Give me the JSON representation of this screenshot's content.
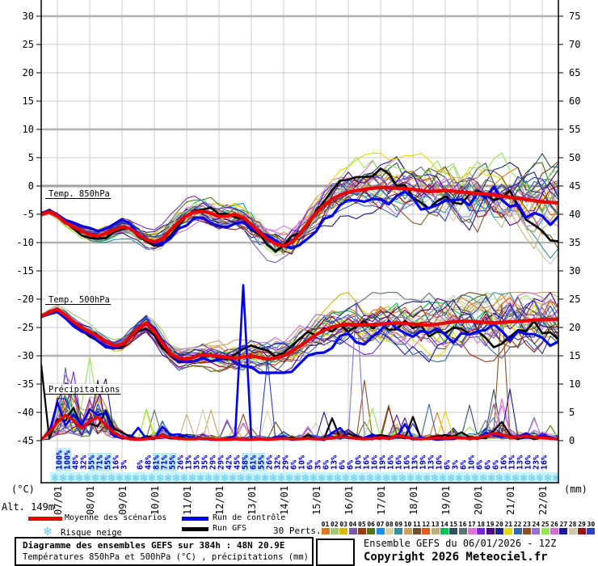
{
  "axes": {
    "left_unit": "(°C)",
    "right_unit": "(mm)",
    "alt_label": "Alt. 149m"
  },
  "legend": {
    "mean_label": "Moyenne des scénarios",
    "control_label": "Run de contrôle",
    "gfs_label": "Run GFS",
    "perts_label": "30 Perts.",
    "snow_label": "Risque neige",
    "snow_icon": "❄",
    "mean_color": "#ee0000",
    "control_color": "#0000ee",
    "gfs_color": "#000000"
  },
  "members": {
    "numbers": [
      "01",
      "02",
      "03",
      "04",
      "05",
      "06",
      "07",
      "08",
      "09",
      "10",
      "11",
      "12",
      "13",
      "14",
      "15",
      "16",
      "17",
      "18",
      "19",
      "20",
      "21",
      "22",
      "23",
      "24",
      "25",
      "26",
      "27",
      "28",
      "29",
      "30"
    ],
    "colors": [
      "#e07818",
      "#a0c878",
      "#d8b800",
      "#8058a8",
      "#a03818",
      "#507818",
      "#1890e8",
      "#d8d0a0",
      "#3090a0",
      "#d0a058",
      "#705028",
      "#e85818",
      "#c0b070",
      "#00c050",
      "#305060",
      "#607078",
      "#e070e0",
      "#7828d8",
      "#500088",
      "#202090",
      "#e8d800",
      "#3068a8",
      "#905020",
      "#9070d8",
      "#90e850",
      "#d070d0",
      "#1818a0",
      "#d0c8a0",
      "#a01010",
      "#2840c8"
    ]
  },
  "footer": {
    "title_line1": "Diagramme des ensembles GEFS sur 384h : 48N 20.9E",
    "title_line2": "Températures 850hPa et 500hPa (°C) , précipitations (mm)",
    "run_info": "Ensemble GEFS du 06/01/2026 - 12Z",
    "copyright": "Copyright 2026 Meteociel.fr"
  },
  "chart_data": {
    "type": "line",
    "title": "Diagramme des ensembles GEFS sur 384h : 48N 20.9E",
    "subtitle": "Températures 850hPa et 500hPa (°C) , précipitations (mm)",
    "x_ticks": [
      "07/01",
      "08/01",
      "09/01",
      "10/01",
      "11/01",
      "12/01",
      "13/01",
      "14/01",
      "15/01",
      "16/01",
      "17/01",
      "18/01",
      "19/01",
      "20/01",
      "21/01",
      "22/01"
    ],
    "y_left_ticks": [
      30,
      25,
      20,
      15,
      10,
      5,
      0,
      -5,
      -10,
      -15,
      -20,
      -25,
      -30,
      -35,
      -40,
      -45
    ],
    "y_right_ticks": [
      75,
      70,
      65,
      60,
      55,
      50,
      45,
      40,
      35,
      30,
      25,
      20,
      15,
      10,
      5,
      0
    ],
    "y_left_range": [
      -47.5,
      32.9
    ],
    "y_right_range": [
      -2.5,
      77.9
    ],
    "step_hours": 6,
    "ensemble_members": 30,
    "sections": [
      {
        "label": "Temp. 850hPa"
      },
      {
        "label": "Temp. 500hPa"
      },
      {
        "label": "Précipitations"
      }
    ],
    "mean": {
      "name": "Moyenne des scénarios",
      "temp850": [
        -5.0,
        -4.6,
        -5.3,
        -6.5,
        -7.2,
        -8.0,
        -8.6,
        -8.8,
        -8.4,
        -7.8,
        -7.2,
        -7.5,
        -8.6,
        -9.5,
        -9.9,
        -9.3,
        -7.8,
        -6.4,
        -5.2,
        -4.6,
        -4.5,
        -4.8,
        -5.4,
        -5.3,
        -5.0,
        -5.6,
        -6.8,
        -8.2,
        -9.4,
        -10.2,
        -10.6,
        -10.0,
        -8.5,
        -6.6,
        -4.8,
        -3.4,
        -2.3,
        -1.6,
        -1.1,
        -0.8,
        -0.6,
        -0.4,
        -0.3,
        -0.3,
        -0.4,
        -0.5,
        -0.6,
        -0.8,
        -1.0,
        -0.9,
        -0.8,
        -0.9,
        -1.1,
        -1.2,
        -1.3,
        -1.4,
        -1.6,
        -1.8,
        -2.0,
        -2.2,
        -2.4,
        -2.6,
        -2.8,
        -2.9,
        -3.0
      ],
      "temp500": [
        -23.0,
        -22.3,
        -21.8,
        -22.8,
        -24.0,
        -25.0,
        -25.8,
        -26.6,
        -27.4,
        -28.2,
        -28.0,
        -26.8,
        -25.2,
        -24.2,
        -25.6,
        -27.8,
        -29.6,
        -30.4,
        -30.6,
        -30.2,
        -29.8,
        -29.9,
        -30.1,
        -30.3,
        -30.4,
        -30.2,
        -30.0,
        -30.3,
        -30.6,
        -30.4,
        -30.0,
        -29.2,
        -28.3,
        -27.3,
        -26.3,
        -25.5,
        -24.9,
        -24.6,
        -24.4,
        -24.5,
        -24.6,
        -24.5,
        -24.4,
        -24.3,
        -24.2,
        -24.3,
        -24.4,
        -24.5,
        -24.6,
        -24.4,
        -24.2,
        -24.0,
        -23.9,
        -23.9,
        -24.0,
        -24.1,
        -24.2,
        -24.1,
        -24.0,
        -23.9,
        -23.8,
        -23.7,
        -23.6,
        -23.6,
        -23.5
      ],
      "precip": [
        0.2,
        1.5,
        3.2,
        4.5,
        3.6,
        2.2,
        3.4,
        4.2,
        2.8,
        1.4,
        0.6,
        0.3,
        0.2,
        0.3,
        0.5,
        0.8,
        0.6,
        0.4,
        0.3,
        0.3,
        0.4,
        0.3,
        0.2,
        0.2,
        0.3,
        0.2,
        0.2,
        0.3,
        0.2,
        0.3,
        0.4,
        0.3,
        0.3,
        0.4,
        0.3,
        0.3,
        0.5,
        0.7,
        0.6,
        0.4,
        0.3,
        0.4,
        0.5,
        0.4,
        0.9,
        0.6,
        0.4,
        0.3,
        0.4,
        0.5,
        0.4,
        0.6,
        0.5,
        0.4,
        0.5,
        0.8,
        1.3,
        1.0,
        0.7,
        0.6,
        0.8,
        0.6,
        0.5,
        0.4,
        0.3
      ]
    },
    "snow_risk_percent": [
      "100%",
      "100%",
      "48%",
      "32%",
      "55%",
      "71%",
      "55%",
      "16%",
      "3%",
      "",
      "6%",
      "48%",
      "81%",
      "71%",
      "55%",
      "26%",
      "13%",
      "35%",
      "35%",
      "29%",
      "29%",
      "42%",
      "45%",
      "58%",
      "61%",
      "55%",
      "26%",
      "32%",
      "29%",
      "6%",
      "10%",
      "6%",
      "3%",
      "6%",
      "13%",
      "6%",
      "6%",
      "10%",
      "16%",
      "16%",
      "19%",
      "16%",
      "16%",
      "16%",
      "13%",
      "19%",
      "13%",
      "10%",
      "6%",
      "3%",
      "6%",
      "10%",
      "6%",
      "6%",
      "6%",
      "16%",
      "13%",
      "13%",
      "10%",
      "23%",
      "16%"
    ],
    "snowflake": "❄",
    "grid": true
  }
}
